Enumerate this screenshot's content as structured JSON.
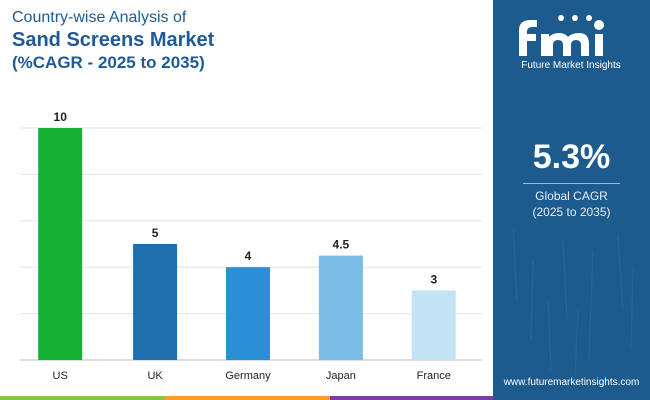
{
  "title": {
    "line1": "Country-wise Analysis of",
    "line2": "Sand Screens Market",
    "line3": "(%CAGR - 2025 to 2035)"
  },
  "chart_data": {
    "type": "bar",
    "categories": [
      "US",
      "UK",
      "Germany",
      "Japan",
      "France"
    ],
    "values": [
      10,
      5,
      4,
      4.5,
      3
    ],
    "value_labels": [
      "10",
      "5",
      "4",
      "4.5",
      "3"
    ],
    "colors": [
      "#14b135",
      "#1f6fae",
      "#2b8fd6",
      "#7bbce6",
      "#c4e2f5"
    ],
    "ylim": [
      0,
      10
    ],
    "grid": true,
    "title": "Country-wise Analysis of Sand Screens Market (%CAGR - 2025 to 2035)",
    "xlabel": "",
    "ylabel": ""
  },
  "panel": {
    "brand_mark": "fmi",
    "brand_name": "Future Market Insights",
    "metric_value": "5.3%",
    "metric_label_line1": "Global CAGR",
    "metric_label_line2": "(2025 to 2035)",
    "website": "www.futuremarketinsights.com",
    "bg_color": "#1d5b8f"
  },
  "bottom_bar_colors": [
    "#8bc34a",
    "#f59e2a",
    "#7b3fa0"
  ]
}
